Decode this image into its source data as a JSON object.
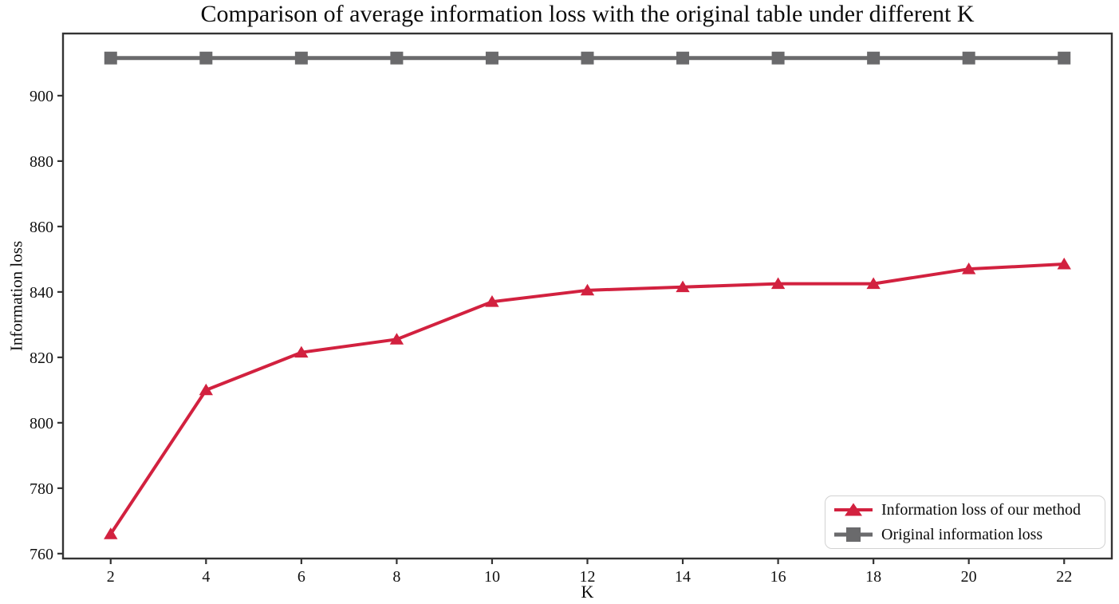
{
  "title": "Comparison of average information loss with the original table under different K",
  "axes": {
    "x_label": "K",
    "y_label": "Information loss",
    "x_ticks": [
      2,
      4,
      6,
      8,
      10,
      12,
      14,
      16,
      18,
      20,
      22
    ],
    "y_ticks": [
      760,
      780,
      800,
      820,
      840,
      860,
      880,
      900
    ]
  },
  "legend": {
    "entries": [
      {
        "label": "Information loss of our method",
        "marker": "triangle",
        "color": "#d2213f"
      },
      {
        "label": "Original information loss",
        "marker": "square",
        "color": "#6a6a6c"
      }
    ]
  },
  "colors": {
    "our_method": "#d2213f",
    "original": "#6a6a6c",
    "axis": "#333333",
    "text": "#0c0c0c"
  },
  "chart_data": {
    "type": "line",
    "title": "Comparison of average information loss with the original table under different K",
    "xlabel": "K",
    "ylabel": "Information loss",
    "x": [
      2,
      4,
      6,
      8,
      10,
      12,
      14,
      16,
      18,
      20,
      22
    ],
    "series": [
      {
        "name": "Information loss of our method",
        "marker": "triangle",
        "color": "#d2213f",
        "linewidth": 4,
        "values": [
          766,
          810,
          821.5,
          825.5,
          837,
          840.5,
          841.5,
          842.5,
          842.5,
          847,
          848.5
        ]
      },
      {
        "name": "Original information loss",
        "marker": "square",
        "color": "#6a6a6c",
        "linewidth": 5,
        "values": [
          911.5,
          911.5,
          911.5,
          911.5,
          911.5,
          911.5,
          911.5,
          911.5,
          911.5,
          911.5,
          911.5
        ]
      }
    ],
    "xlim": [
      1,
      23
    ],
    "ylim": [
      758.5,
      919
    ],
    "grid": false,
    "legend_position": "lower right"
  }
}
